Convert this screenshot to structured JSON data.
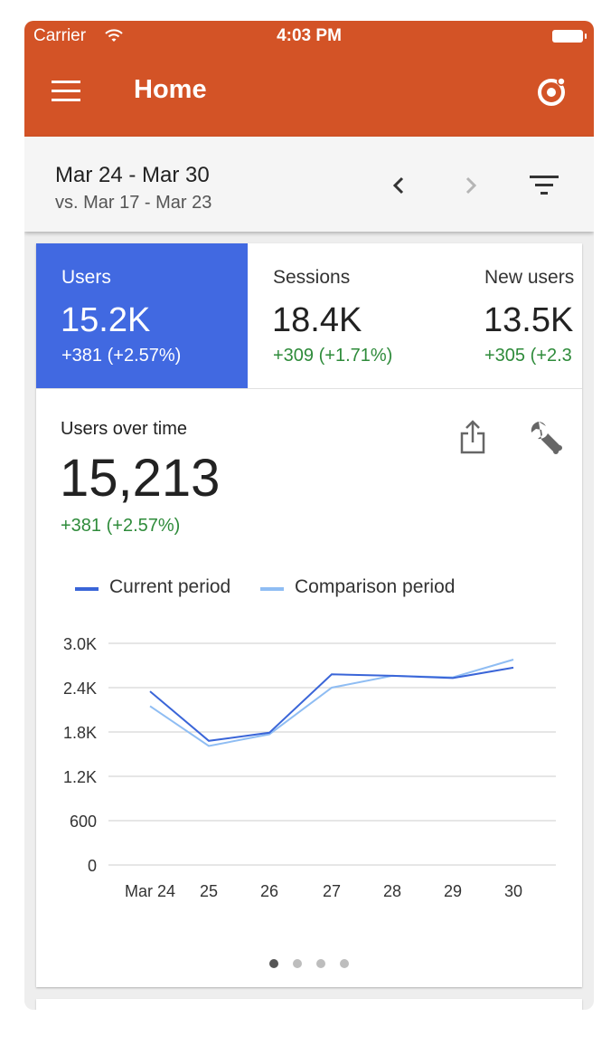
{
  "status_bar": {
    "carrier": "Carrier",
    "time": "4:03 PM"
  },
  "app_bar": {
    "title": "Home"
  },
  "date_bar": {
    "range": "Mar 24 - Mar 30",
    "compare": "vs. Mar 17 - Mar 23"
  },
  "metrics": [
    {
      "label": "Users",
      "value": "15.2K",
      "delta": "+381 (+2.57%)",
      "active": true
    },
    {
      "label": "Sessions",
      "value": "18.4K",
      "delta": "+309 (+1.71%)",
      "active": false
    },
    {
      "label": "New users",
      "value": "13.5K",
      "delta": "+305 (+2.3",
      "active": false
    }
  ],
  "chart_card": {
    "title": "Users over time",
    "value": "15,213",
    "delta": "+381 (+2.57%)"
  },
  "colors": {
    "accent": "#d35326",
    "active_tab": "#4169e1",
    "positive": "#2e8b3a",
    "current": "#3a65d8",
    "comparison": "#8fbdf3"
  },
  "pager": {
    "count": 4,
    "active": 0
  },
  "chart_data": {
    "type": "line",
    "categories": [
      "Mar 24",
      "25",
      "26",
      "27",
      "28",
      "29",
      "30"
    ],
    "y_ticks": [
      "0",
      "600",
      "1.2K",
      "1.8K",
      "2.4K",
      "3.0K"
    ],
    "ylim": [
      0,
      3000
    ],
    "grid": true,
    "legend": "top-left",
    "series": [
      {
        "name": "Current period",
        "color": "#3a65d8",
        "values": [
          2350,
          1680,
          1790,
          2580,
          2560,
          2530,
          2670
        ]
      },
      {
        "name": "Comparison period",
        "color": "#8fbdf3",
        "values": [
          2150,
          1610,
          1770,
          2400,
          2560,
          2540,
          2780
        ]
      }
    ]
  }
}
